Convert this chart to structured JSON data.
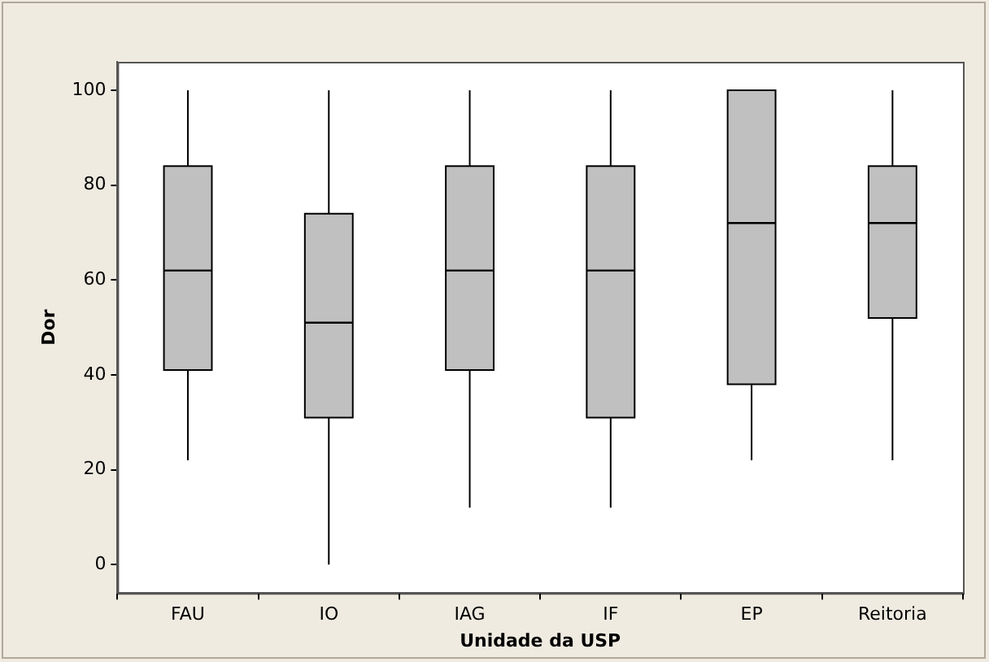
{
  "chart_data": {
    "type": "box",
    "xlabel": "Unidade da USP",
    "ylabel": "Dor",
    "categories": [
      "FAU",
      "IO",
      "IAG",
      "IF",
      "EP",
      "Reitoria"
    ],
    "boxes": [
      {
        "low": 22,
        "q1": 41,
        "median": 62,
        "q3": 84,
        "high": 100
      },
      {
        "low": 0,
        "q1": 31,
        "median": 51,
        "q3": 74,
        "high": 100
      },
      {
        "low": 12,
        "q1": 41,
        "median": 62,
        "q3": 84,
        "high": 100
      },
      {
        "low": 12,
        "q1": 31,
        "median": 62,
        "q3": 84,
        "high": 100
      },
      {
        "low": 22,
        "q1": 38,
        "median": 72,
        "q3": 100,
        "high": 100
      },
      {
        "low": 22,
        "q1": 52,
        "median": 72,
        "q3": 84,
        "high": 100
      }
    ],
    "color": "#c0c0c0",
    "ylim": [
      -6,
      106
    ],
    "yticks": [
      0,
      20,
      40,
      60,
      80,
      100
    ],
    "grid": false,
    "legend": false
  }
}
